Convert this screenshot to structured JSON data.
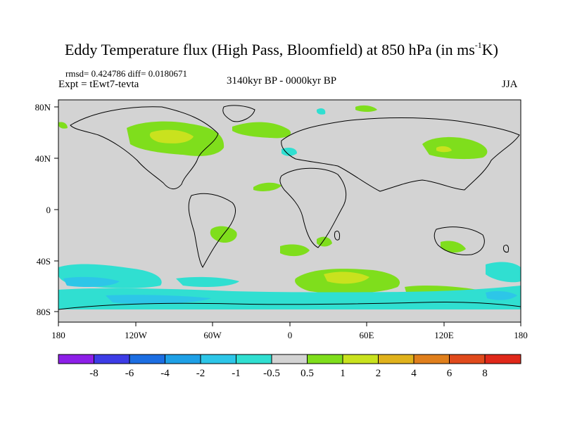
{
  "title": {
    "main": "Eddy Temperature flux (High Pass, Bloomfield) at 850 hPa (in ms",
    "sup": "-1",
    "unit_tail": "K)"
  },
  "stats": "rmsd= 0.424786 diff= 0.0180671",
  "expt": "Expt = tEwt7-tevta",
  "period": "3140kyr BP - 0000kyr BP",
  "season": "JJA",
  "map": {
    "lon_ticks": [
      "180",
      "120W",
      "60W",
      "0",
      "60E",
      "120E",
      "180"
    ],
    "lat_ticks": [
      "80N",
      "40N",
      "0",
      "40S",
      "80S"
    ],
    "background_color": "#d3d3d3"
  },
  "colorbar": {
    "labels": [
      "-8",
      "-6",
      "-4",
      "-2",
      "-1",
      "-0.5",
      "0.5",
      "1",
      "2",
      "4",
      "6",
      "8"
    ],
    "colors": [
      "#8d1fe8",
      "#3d3ce6",
      "#1c6ee2",
      "#1ea0e6",
      "#2dc6e8",
      "#30dfd1",
      "#d3d3d3",
      "#7fde1c",
      "#c9e21e",
      "#e0b21c",
      "#e07f1c",
      "#e04a1c",
      "#e0281a"
    ]
  }
}
